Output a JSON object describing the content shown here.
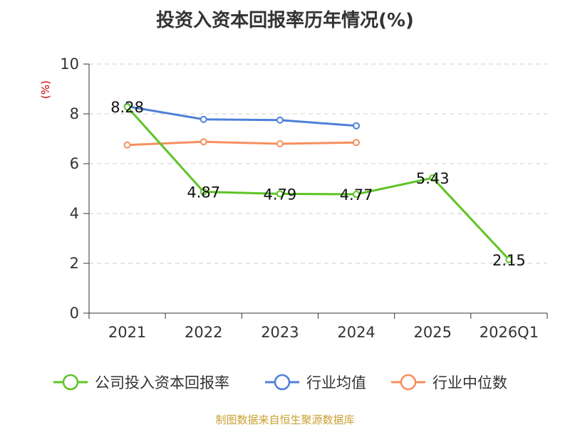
{
  "colors": {
    "company": "#5ec326",
    "industry_avg": "#4f7fd9",
    "industry_median": "#f58f5e",
    "source": "#c8a032",
    "unit": "#cc0000"
  },
  "chart_data": {
    "type": "line",
    "title": "投资入资本回报率历年情况(%)",
    "ylabel": "(%)",
    "xlabel": "",
    "ylim": [
      0,
      10
    ],
    "yticks": [
      0,
      2,
      4,
      6,
      8,
      10
    ],
    "grid": true,
    "legend_position": "bottom",
    "categories": [
      "2021",
      "2022",
      "2023",
      "2024",
      "2025",
      "2026Q1"
    ],
    "series": [
      {
        "key": "company",
        "name": "公司投入资本回报率",
        "values": [
          8.28,
          4.87,
          4.79,
          4.77,
          5.43,
          2.15
        ],
        "labels": [
          "8.28",
          "4.87",
          "4.79",
          "4.77",
          "5.43",
          "2.15"
        ]
      },
      {
        "key": "industry_avg",
        "name": "行业均值",
        "values": [
          8.3,
          7.78,
          7.75,
          7.52,
          null,
          null
        ]
      },
      {
        "key": "industry_median",
        "name": "行业中位数",
        "values": [
          6.75,
          6.88,
          6.8,
          6.85,
          null,
          null
        ]
      }
    ]
  },
  "source_note": "制图数据来自恒生聚源数据库"
}
